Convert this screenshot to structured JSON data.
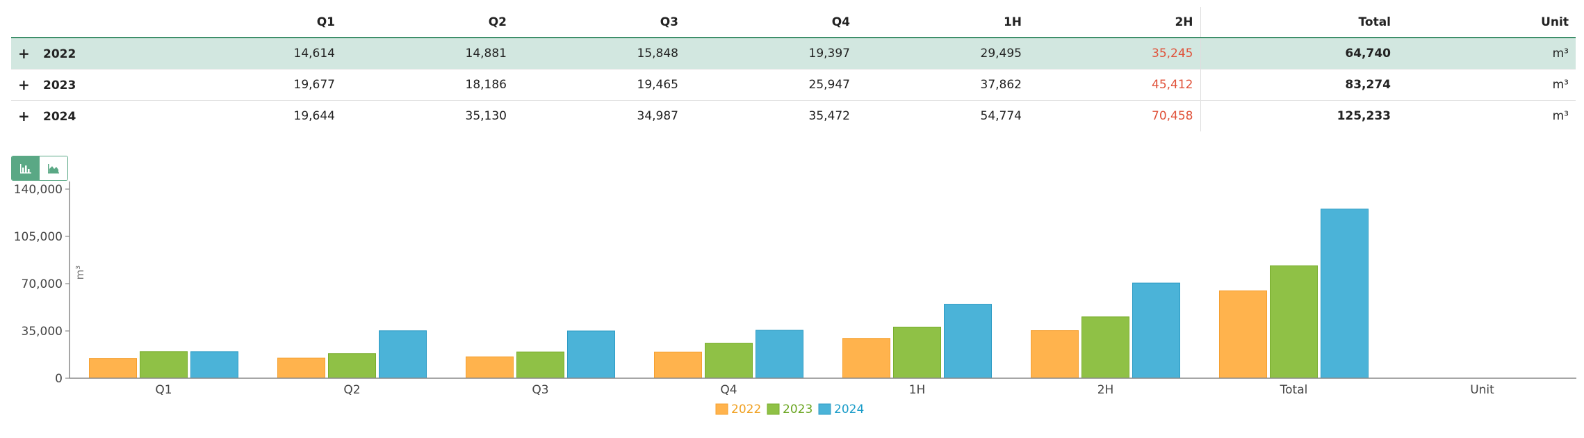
{
  "table": {
    "columns": [
      "",
      "Q1",
      "Q2",
      "Q3",
      "Q4",
      "1H",
      "2H",
      "Total",
      "Unit"
    ],
    "rows": [
      {
        "year": "2022",
        "q1": "14,614",
        "q2": "14,881",
        "q3": "15,848",
        "q4": "19,397",
        "h1": "29,495",
        "h2": "35,245",
        "total": "64,740",
        "unit": "m³"
      },
      {
        "year": "2023",
        "q1": "19,677",
        "q2": "18,186",
        "q3": "19,465",
        "q4": "25,947",
        "h1": "37,862",
        "h2": "45,412",
        "total": "83,274",
        "unit": "m³"
      },
      {
        "year": "2024",
        "q1": "19,644",
        "q2": "35,130",
        "q3": "34,987",
        "q4": "35,472",
        "h1": "54,774",
        "h2": "70,458",
        "total": "125,233",
        "unit": "m³"
      }
    ],
    "expand_icon": "+"
  },
  "toggle": {
    "bar_icon": "bar-chart-icon",
    "area_icon": "area-chart-icon",
    "accent": "#5aa885"
  },
  "chart_data": {
    "type": "bar",
    "title": "",
    "xlabel": "",
    "ylabel": "m³",
    "categories": [
      "Q1",
      "Q2",
      "Q3",
      "Q4",
      "1H",
      "2H",
      "Total",
      "Unit"
    ],
    "ylim": [
      0,
      140000
    ],
    "yticks": [
      0,
      35000,
      70000,
      105000,
      140000
    ],
    "ytick_labels": [
      "0",
      "35,000",
      "70,000",
      "105,000",
      "140,000"
    ],
    "legend_position": "bottom",
    "series": [
      {
        "name": "2022",
        "color": "#ffb34d",
        "stroke": "#f5a030",
        "text_color": "#f0a020",
        "values": [
          14614,
          14881,
          15848,
          19397,
          29495,
          35245,
          64740,
          null
        ]
      },
      {
        "name": "2023",
        "color": "#8fc146",
        "stroke": "#78ad2c",
        "text_color": "#6aa520",
        "values": [
          19677,
          18186,
          19465,
          25947,
          37862,
          45412,
          83274,
          null
        ]
      },
      {
        "name": "2024",
        "color": "#4bb3d8",
        "stroke": "#2c9bc4",
        "text_color": "#1a9cc9",
        "values": [
          19644,
          35130,
          34987,
          35472,
          54774,
          70458,
          125233,
          null
        ]
      }
    ]
  }
}
